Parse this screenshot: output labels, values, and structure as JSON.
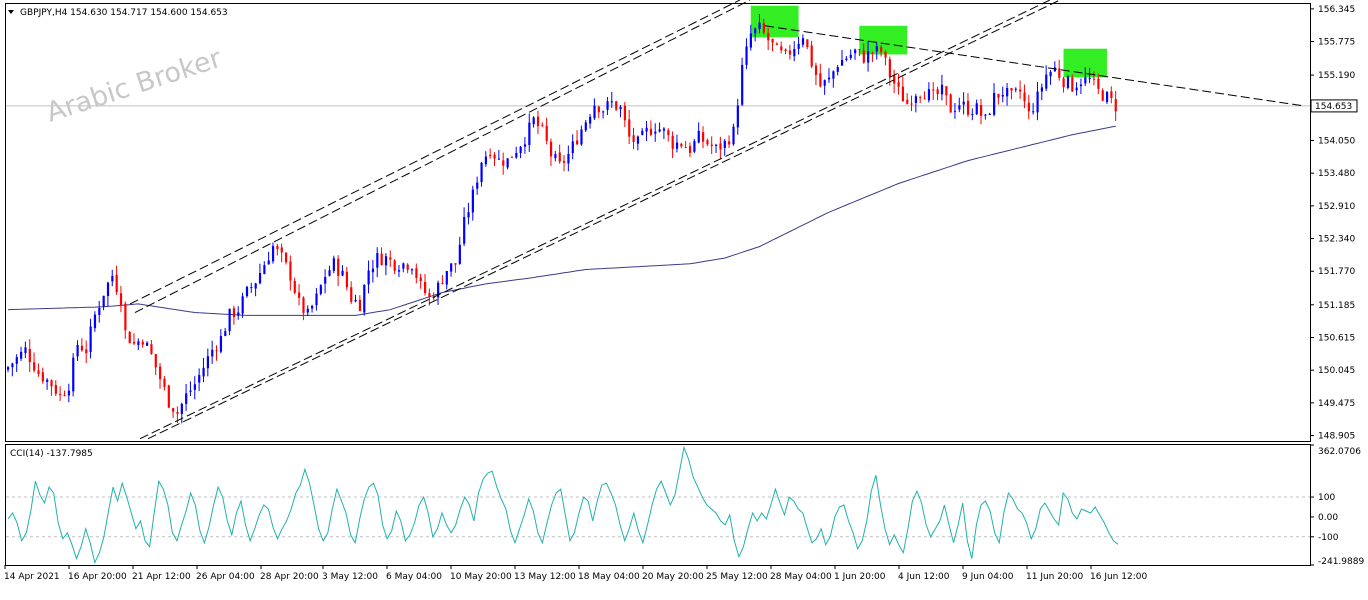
{
  "colors": {
    "background": "#ffffff",
    "border": "#000000",
    "bull_candle": "#0000ff",
    "bear_candle": "#ff0000",
    "moving_average": "#3a3a8c",
    "cci_line": "#20b2aa",
    "level_lines": "#c0c0c0",
    "highlight": "#33ee22",
    "trend_lines": "#000000",
    "watermark": "#c8c8c8"
  },
  "watermark": "Arabic Broker",
  "chart_data": [
    {
      "type": "candlestick",
      "symbol_header": "GBPJPY,H4  154.630 154.717 154.600 154.653",
      "current_price_label": "154.653",
      "current_price": 154.653,
      "ylim": [
        148.81,
        156.43
      ],
      "y_ticks": [
        "156.345",
        "155.775",
        "155.190",
        "154.620",
        "154.050",
        "153.480",
        "152.910",
        "152.340",
        "151.770",
        "151.185",
        "150.615",
        "150.045",
        "149.475",
        "148.905"
      ],
      "x_ticks": [
        "14 Apr 2021",
        "16 Apr 20:00",
        "21 Apr 12:00",
        "26 Apr 04:00",
        "28 Apr 20:00",
        "3 May 12:00",
        "6 May 04:00",
        "10 May 20:00",
        "13 May 12:00",
        "18 May 04:00",
        "20 May 20:00",
        "25 May 12:00",
        "28 May 04:00",
        "1 Jun 20:00",
        "4 Jun 12:00",
        "9 Jun 04:00",
        "11 Jun 20:00",
        "16 Jun 12:00"
      ],
      "grid": false,
      "close_path": [
        [
          0,
          150.1
        ],
        [
          4,
          150.4
        ],
        [
          7,
          150.0
        ],
        [
          10,
          149.8
        ],
        [
          12,
          149.6
        ],
        [
          14,
          149.8
        ],
        [
          16,
          150.5
        ],
        [
          18,
          150.4
        ],
        [
          20,
          151.0
        ],
        [
          22,
          151.4
        ],
        [
          24,
          151.7
        ],
        [
          26,
          151.3
        ],
        [
          27,
          150.7
        ],
        [
          29,
          150.5
        ],
        [
          31,
          150.6
        ],
        [
          33,
          150.3
        ],
        [
          35,
          149.9
        ],
        [
          37,
          149.5
        ],
        [
          39,
          149.3
        ],
        [
          41,
          149.6
        ],
        [
          43,
          149.8
        ],
        [
          45,
          150.1
        ],
        [
          47,
          150.4
        ],
        [
          49,
          150.6
        ],
        [
          51,
          151.0
        ],
        [
          53,
          151.1
        ],
        [
          55,
          151.4
        ],
        [
          57,
          151.6
        ],
        [
          59,
          151.9
        ],
        [
          61,
          152.2
        ],
        [
          63,
          152.0
        ],
        [
          65,
          151.7
        ],
        [
          67,
          151.2
        ],
        [
          69,
          151.0
        ],
        [
          71,
          151.3
        ],
        [
          73,
          151.7
        ],
        [
          75,
          151.9
        ],
        [
          77,
          151.7
        ],
        [
          79,
          151.3
        ],
        [
          81,
          151.2
        ],
        [
          83,
          151.8
        ],
        [
          85,
          152.0
        ],
        [
          87,
          152.0
        ],
        [
          89,
          151.9
        ],
        [
          91,
          151.9
        ],
        [
          93,
          151.9
        ],
        [
          95,
          151.5
        ],
        [
          97,
          151.3
        ],
        [
          99,
          151.5
        ],
        [
          101,
          151.8
        ],
        [
          103,
          151.9
        ],
        [
          105,
          152.6
        ],
        [
          107,
          153.1
        ],
        [
          109,
          153.7
        ],
        [
          111,
          153.9
        ],
        [
          113,
          153.7
        ],
        [
          115,
          153.7
        ],
        [
          117,
          153.9
        ],
        [
          119,
          154.1
        ],
        [
          121,
          154.4
        ],
        [
          123,
          154.2
        ],
        [
          125,
          153.8
        ],
        [
          127,
          153.6
        ],
        [
          129,
          153.8
        ],
        [
          131,
          154.1
        ],
        [
          133,
          154.4
        ],
        [
          135,
          154.7
        ],
        [
          137,
          154.6
        ],
        [
          139,
          154.7
        ],
        [
          141,
          154.6
        ],
        [
          143,
          154.1
        ],
        [
          145,
          154.0
        ],
        [
          147,
          154.2
        ],
        [
          149,
          154.3
        ],
        [
          151,
          154.2
        ],
        [
          153,
          154.0
        ],
        [
          155,
          154.0
        ],
        [
          157,
          153.9
        ],
        [
          159,
          154.1
        ],
        [
          161,
          154.0
        ],
        [
          163,
          153.9
        ],
        [
          165,
          154.0
        ],
        [
          167,
          154.2
        ],
        [
          169,
          155.3
        ],
        [
          171,
          155.9
        ],
        [
          173,
          156.0
        ],
        [
          175,
          155.8
        ],
        [
          177,
          155.6
        ],
        [
          179,
          155.5
        ],
        [
          181,
          155.7
        ],
        [
          183,
          155.9
        ],
        [
          185,
          155.4
        ],
        [
          187,
          155.0
        ],
        [
          189,
          155.1
        ],
        [
          191,
          155.4
        ],
        [
          193,
          155.5
        ],
        [
          195,
          155.6
        ],
        [
          197,
          155.5
        ],
        [
          199,
          155.6
        ],
        [
          201,
          155.6
        ],
        [
          203,
          155.2
        ],
        [
          205,
          154.9
        ],
        [
          207,
          154.7
        ],
        [
          209,
          154.9
        ],
        [
          211,
          154.9
        ],
        [
          213,
          154.8
        ],
        [
          215,
          154.9
        ],
        [
          217,
          154.6
        ],
        [
          219,
          154.7
        ],
        [
          221,
          154.6
        ],
        [
          223,
          154.6
        ],
        [
          225,
          154.4
        ],
        [
          227,
          154.8
        ],
        [
          229,
          154.9
        ],
        [
          231,
          154.8
        ],
        [
          233,
          154.9
        ],
        [
          235,
          154.5
        ],
        [
          237,
          154.8
        ],
        [
          239,
          155.2
        ],
        [
          241,
          155.3
        ],
        [
          243,
          155.1
        ],
        [
          245,
          155.0
        ],
        [
          247,
          155.1
        ],
        [
          249,
          155.1
        ],
        [
          251,
          154.9
        ],
        [
          253,
          154.8
        ],
        [
          255,
          154.65
        ]
      ],
      "range_path": [
        [
          0,
          150.0,
          150.6
        ],
        [
          20,
          150.6,
          151.8
        ],
        [
          27,
          150.3,
          151.2
        ],
        [
          39,
          149.0,
          149.8
        ],
        [
          61,
          151.9,
          152.4
        ],
        [
          69,
          150.8,
          151.4
        ],
        [
          85,
          151.7,
          152.2
        ],
        [
          97,
          151.0,
          151.6
        ],
        [
          111,
          153.5,
          154.2
        ],
        [
          121,
          154.1,
          154.6
        ],
        [
          135,
          154.3,
          154.9
        ],
        [
          145,
          153.7,
          154.2
        ],
        [
          157,
          153.6,
          154.1
        ],
        [
          167,
          153.9,
          154.4
        ],
        [
          173,
          155.7,
          156.2
        ],
        [
          187,
          154.7,
          155.2
        ],
        [
          199,
          155.4,
          155.9
        ],
        [
          207,
          154.5,
          155.1
        ],
        [
          225,
          154.2,
          154.7
        ],
        [
          239,
          155.0,
          155.5
        ],
        [
          245,
          154.4,
          155.2
        ],
        [
          255,
          154.5,
          154.8
        ]
      ],
      "ma_path": [
        [
          0,
          151.1
        ],
        [
          22,
          151.15
        ],
        [
          30,
          151.2
        ],
        [
          43,
          151.05
        ],
        [
          55,
          151.0
        ],
        [
          70,
          151.0
        ],
        [
          80,
          151.0
        ],
        [
          88,
          151.1
        ],
        [
          92,
          151.2
        ],
        [
          100,
          151.4
        ],
        [
          110,
          151.55
        ],
        [
          120,
          151.65
        ],
        [
          133,
          151.8
        ],
        [
          145,
          151.85
        ],
        [
          157,
          151.9
        ],
        [
          165,
          152.0
        ],
        [
          173,
          152.2
        ],
        [
          181,
          152.5
        ],
        [
          189,
          152.8
        ],
        [
          197,
          153.05
        ],
        [
          205,
          153.3
        ],
        [
          213,
          153.5
        ],
        [
          221,
          153.7
        ],
        [
          229,
          153.85
        ],
        [
          237,
          154.0
        ],
        [
          245,
          154.15
        ],
        [
          255,
          154.3
        ]
      ],
      "channel_upper_ratio": 0.0,
      "annotations": [
        "green boxes at three tops",
        "ascending channel",
        "descending resistance line"
      ]
    },
    {
      "type": "line",
      "title": "CCI(14) -137.7985",
      "ylim": [
        -241.9889,
        362.0706
      ],
      "y_ticks": [
        "362.0706",
        "100",
        "0.00",
        "-100",
        "-241.9889"
      ],
      "levels": [
        100,
        -100
      ],
      "values": [
        -10,
        20,
        -30,
        -120,
        -80,
        30,
        180,
        110,
        70,
        150,
        120,
        -30,
        -110,
        -80,
        -140,
        -210,
        -150,
        -60,
        -130,
        -230,
        -180,
        -100,
        30,
        150,
        80,
        170,
        100,
        20,
        -60,
        -20,
        -120,
        -150,
        20,
        180,
        140,
        60,
        -80,
        -120,
        -40,
        30,
        120,
        60,
        -70,
        -130,
        -50,
        60,
        150,
        100,
        -20,
        -90,
        20,
        80,
        -40,
        -120,
        -60,
        10,
        60,
        40,
        -50,
        -110,
        -60,
        -20,
        40,
        120,
        160,
        240,
        170,
        60,
        -60,
        -120,
        -80,
        40,
        140,
        80,
        20,
        -90,
        -130,
        -10,
        90,
        150,
        170,
        110,
        -40,
        -110,
        -70,
        30,
        -20,
        -120,
        -90,
        -30,
        60,
        100,
        20,
        -100,
        -60,
        20,
        -40,
        -80,
        -40,
        40,
        100,
        60,
        -20,
        120,
        190,
        220,
        230,
        150,
        90,
        40,
        -70,
        -130,
        -60,
        10,
        90,
        30,
        -80,
        -130,
        -30,
        60,
        120,
        140,
        10,
        -120,
        -80,
        20,
        100,
        80,
        -20,
        80,
        160,
        170,
        120,
        60,
        -40,
        -120,
        -60,
        20,
        -70,
        -130,
        -40,
        60,
        140,
        180,
        120,
        60,
        110,
        230,
        350,
        290,
        200,
        150,
        100,
        60,
        40,
        20,
        -20,
        -40,
        10,
        -120,
        -200,
        -150,
        -60,
        20,
        -20,
        20,
        -10,
        60,
        140,
        70,
        10,
        100,
        80,
        40,
        20,
        -60,
        -130,
        -110,
        -60,
        -140,
        -100,
        0,
        50,
        60,
        -20,
        -80,
        -160,
        -120,
        -20,
        130,
        210,
        60,
        -60,
        -140,
        -90,
        -140,
        -180,
        -60,
        80,
        130,
        70,
        -40,
        -100,
        -60,
        -20,
        60,
        -40,
        -130,
        -40,
        70,
        -120,
        -210,
        -40,
        60,
        80,
        30,
        -80,
        -130,
        20,
        120,
        90,
        40,
        20,
        -30,
        -110,
        -60,
        40,
        70,
        30,
        -10,
        -40,
        120,
        90,
        20,
        -10,
        40,
        30,
        20,
        50,
        10,
        -30,
        -80,
        -120,
        -137.8
      ]
    }
  ]
}
